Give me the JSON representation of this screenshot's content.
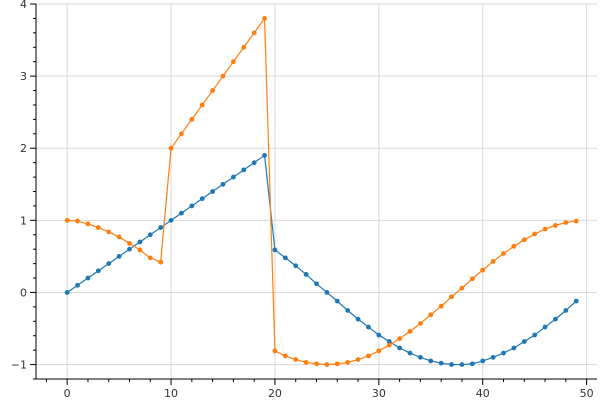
{
  "chart_data": {
    "type": "line",
    "title": "",
    "xlabel": "",
    "ylabel": "",
    "xlim": [
      -3,
      51
    ],
    "ylim": [
      -1.2,
      4.0
    ],
    "grid": true,
    "x_ticks": [
      0,
      10,
      20,
      30,
      40,
      50
    ],
    "y_ticks": [
      -1,
      0,
      1,
      2,
      3,
      4
    ],
    "x_tick_labels": [
      "0",
      "10",
      "20",
      "30",
      "40",
      "50"
    ],
    "y_tick_labels": [
      "−1",
      "0",
      "1",
      "2",
      "3",
      "4"
    ],
    "x": [
      0,
      1,
      2,
      3,
      4,
      5,
      6,
      7,
      8,
      9,
      10,
      11,
      12,
      13,
      14,
      15,
      16,
      17,
      18,
      19,
      20,
      21,
      22,
      23,
      24,
      25,
      26,
      27,
      28,
      29,
      30,
      31,
      32,
      33,
      34,
      35,
      36,
      37,
      38,
      39,
      40,
      41,
      42,
      43,
      44,
      45,
      46,
      47,
      48,
      49
    ],
    "series": [
      {
        "color": "#1f77b4",
        "values": [
          0.0,
          0.1,
          0.2,
          0.3,
          0.4,
          0.5,
          0.6,
          0.7,
          0.8,
          0.9,
          1.0,
          1.1,
          1.2,
          1.3,
          1.4,
          1.5,
          1.6,
          1.7,
          1.8,
          1.9,
          0.59,
          0.48,
          0.37,
          0.25,
          0.12,
          0.0,
          -0.12,
          -0.25,
          -0.37,
          -0.48,
          -0.59,
          -0.68,
          -0.77,
          -0.84,
          -0.9,
          -0.95,
          -0.98,
          -1.0,
          -1.0,
          -0.99,
          -0.95,
          -0.9,
          -0.84,
          -0.77,
          -0.68,
          -0.59,
          -0.48,
          -0.37,
          -0.25,
          -0.12
        ]
      },
      {
        "color": "#ff7f0e",
        "values": [
          1.0,
          0.99,
          0.95,
          0.9,
          0.84,
          0.77,
          0.68,
          0.59,
          0.48,
          0.42,
          2.0,
          2.2,
          2.4,
          2.6,
          2.8,
          3.0,
          3.2,
          3.4,
          3.6,
          3.8,
          -0.81,
          -0.88,
          -0.93,
          -0.97,
          -0.99,
          -1.0,
          -0.99,
          -0.97,
          -0.93,
          -0.88,
          -0.81,
          -0.73,
          -0.64,
          -0.54,
          -0.43,
          -0.31,
          -0.19,
          -0.06,
          0.06,
          0.19,
          0.31,
          0.43,
          0.54,
          0.64,
          0.73,
          0.81,
          0.88,
          0.93,
          0.97,
          0.99
        ]
      }
    ]
  }
}
